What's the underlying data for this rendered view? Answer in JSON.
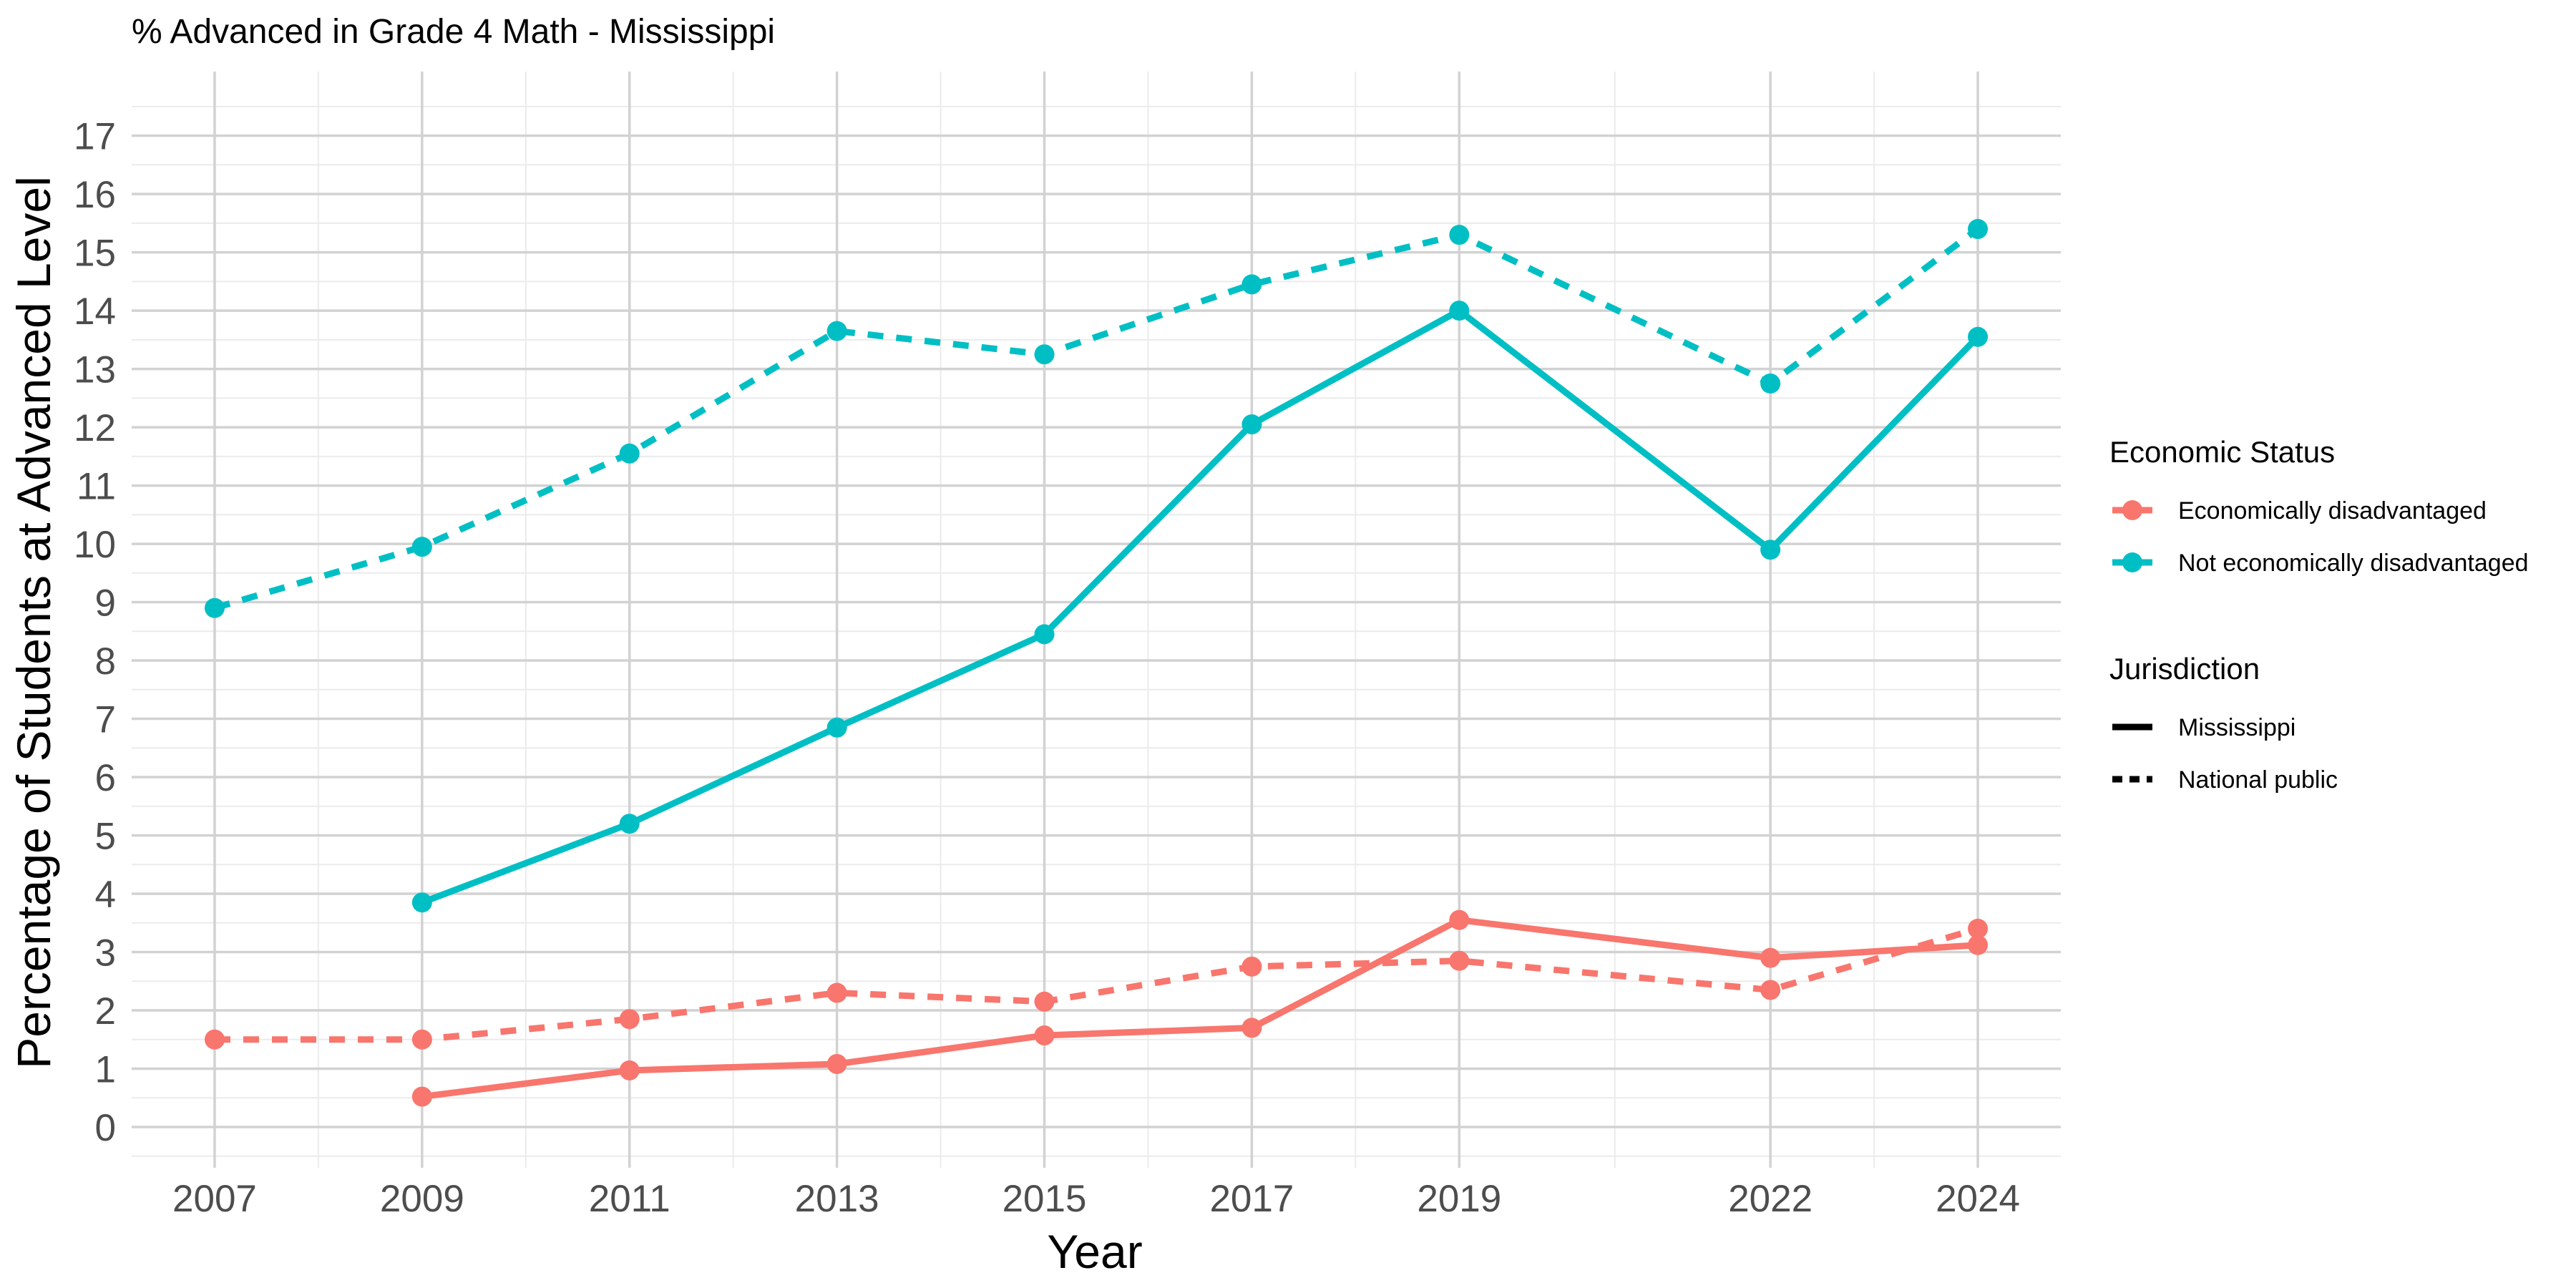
{
  "chart_data": {
    "type": "line",
    "title": "% Advanced in Grade 4 Math - Mississippi",
    "xlabel": "Year",
    "ylabel": "Percentage of Students at Advanced Level",
    "xlim": [
      2006.2,
      2024.8
    ],
    "ylim": [
      -0.7,
      18.1
    ],
    "x_ticks": [
      2007,
      2009,
      2011,
      2013,
      2015,
      2017,
      2019,
      2022,
      2024
    ],
    "y_ticks": [
      0,
      1,
      2,
      3,
      4,
      5,
      6,
      7,
      8,
      9,
      10,
      11,
      12,
      13,
      14,
      15,
      16,
      17
    ],
    "x_minor": [
      2008,
      2010,
      2012,
      2014,
      2016,
      2018,
      2020.5,
      2023
    ],
    "grid": true,
    "colors": {
      "Economically disadvantaged": "#F8766D",
      "Not economically disadvantaged": "#00BFC4"
    },
    "legend": {
      "placement": "right",
      "color_title": "Economic Status",
      "color_entries": [
        "Economically disadvantaged",
        "Not economically disadvantaged"
      ],
      "linetype_title": "Jurisdiction",
      "linetype_entries": [
        "Mississippi",
        "National public"
      ]
    },
    "series": [
      {
        "status": "Not economically disadvantaged",
        "jurisdiction": "National public",
        "linetype": "dashed",
        "x": [
          2007,
          2009,
          2011,
          2013,
          2015,
          2017,
          2019,
          2022,
          2024
        ],
        "y": [
          8.9,
          9.95,
          11.55,
          13.65,
          13.25,
          14.45,
          15.3,
          12.75,
          15.4
        ]
      },
      {
        "status": "Not economically disadvantaged",
        "jurisdiction": "Mississippi",
        "linetype": "solid",
        "x": [
          2009,
          2011,
          2013,
          2015,
          2017,
          2019,
          2022,
          2024
        ],
        "y": [
          3.85,
          5.2,
          6.85,
          8.45,
          12.05,
          14.0,
          9.9,
          13.55
        ]
      },
      {
        "status": "Economically disadvantaged",
        "jurisdiction": "National public",
        "linetype": "dashed",
        "x": [
          2007,
          2009,
          2011,
          2013,
          2015,
          2017,
          2019,
          2022,
          2024
        ],
        "y": [
          1.5,
          1.5,
          1.85,
          2.3,
          2.15,
          2.75,
          2.85,
          2.35,
          3.4
        ]
      },
      {
        "status": "Economically disadvantaged",
        "jurisdiction": "Mississippi",
        "linetype": "solid",
        "x": [
          2009,
          2011,
          2013,
          2015,
          2017,
          2019,
          2022,
          2024
        ],
        "y": [
          0.52,
          0.97,
          1.08,
          1.57,
          1.7,
          3.55,
          2.9,
          3.12
        ]
      }
    ]
  }
}
